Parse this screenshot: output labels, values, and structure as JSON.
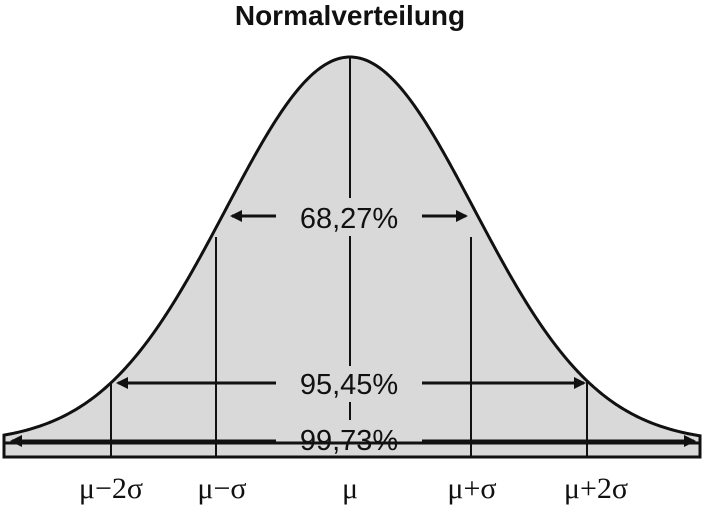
{
  "title": "Normalverteilung",
  "intervals": {
    "one_sigma": "68,27%",
    "two_sigma": "95,45%",
    "three_sigma": "99,73%"
  },
  "axis_labels": [
    "μ−2σ",
    "μ−σ",
    "μ",
    "μ+σ",
    "μ+2σ"
  ],
  "colors": {
    "fill": "#d9d9d9",
    "stroke": "#111111"
  }
}
